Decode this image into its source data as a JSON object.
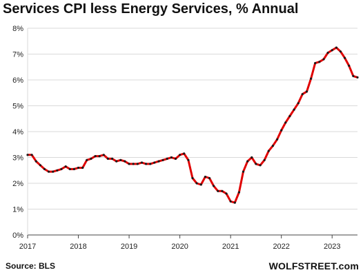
{
  "chart_data": {
    "type": "line",
    "title": "Services CPI less Energy Services, % Annual",
    "source": "Source: BLS",
    "brand": "WOLFSTREET.com",
    "xlabel": "",
    "ylabel": "",
    "ylim": [
      0,
      8
    ],
    "xlim": [
      2017,
      2023.5
    ],
    "y_ticks": [
      "0%",
      "1%",
      "2%",
      "3%",
      "4%",
      "5%",
      "6%",
      "7%",
      "8%"
    ],
    "x_ticks": [
      "2017",
      "2018",
      "2019",
      "2020",
      "2021",
      "2022",
      "2023"
    ],
    "grid": true,
    "colors": {
      "line": "#e00000",
      "marker": "#1a1a1a",
      "grid": "#d9d9d9",
      "axis": "#444444"
    },
    "series": [
      {
        "values": [
          3.1,
          3.1,
          2.85,
          2.7,
          2.55,
          2.45,
          2.45,
          2.5,
          2.55,
          2.65,
          2.55,
          2.55,
          2.6,
          2.6,
          2.9,
          2.95,
          3.05,
          3.05,
          3.1,
          2.95,
          2.95,
          2.85,
          2.9,
          2.85,
          2.75,
          2.75,
          2.75,
          2.8,
          2.75,
          2.75,
          2.8,
          2.85,
          2.9,
          2.95,
          3.0,
          2.95,
          3.1,
          3.15,
          2.9,
          2.2,
          2.0,
          1.95,
          2.25,
          2.2,
          1.9,
          1.7,
          1.7,
          1.6,
          1.3,
          1.25,
          1.65,
          2.45,
          2.85,
          3.0,
          2.75,
          2.7,
          2.9,
          3.25,
          3.45,
          3.7,
          4.05,
          4.35,
          4.6,
          4.85,
          5.1,
          5.45,
          5.55,
          6.05,
          6.65,
          6.7,
          6.8,
          7.05,
          7.15,
          7.25,
          7.1,
          6.85,
          6.55,
          6.15,
          6.1
        ]
      }
    ]
  }
}
